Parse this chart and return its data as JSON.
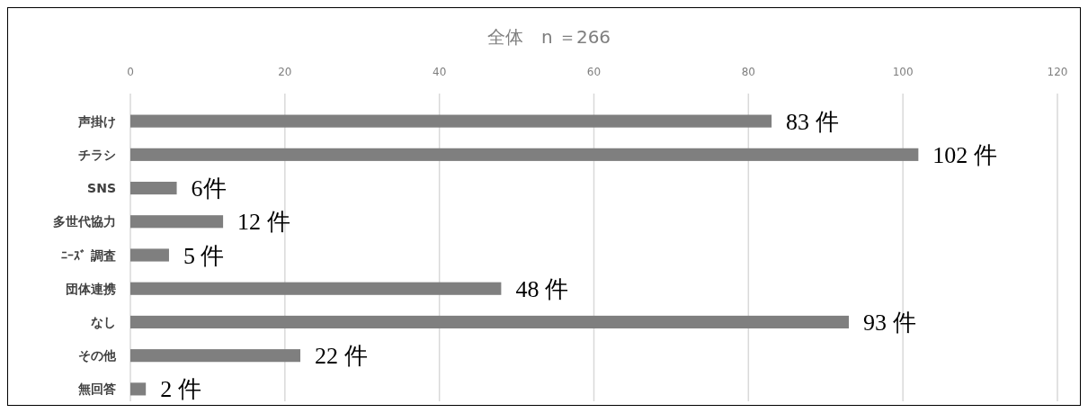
{
  "chart_data": {
    "type": "bar",
    "orientation": "horizontal",
    "title": "全体　n ＝266",
    "categories": [
      "声掛け",
      "チラシ",
      "SNS",
      "多世代協力",
      "ﾆｰｽﾞ 調査",
      "団体連携",
      "なし",
      "その他",
      "無回答"
    ],
    "values": [
      83,
      102,
      6,
      12,
      5,
      48,
      93,
      22,
      2
    ],
    "value_labels": [
      "83 件",
      "102 件",
      "6件",
      "12 件",
      "5 件",
      "48 件",
      "93 件",
      "22 件",
      "2 件"
    ],
    "color": "#7f7f7f",
    "xlim": [
      0,
      120
    ],
    "xticks": [
      0,
      20,
      40,
      60,
      80,
      100,
      120
    ],
    "grid": "x"
  }
}
